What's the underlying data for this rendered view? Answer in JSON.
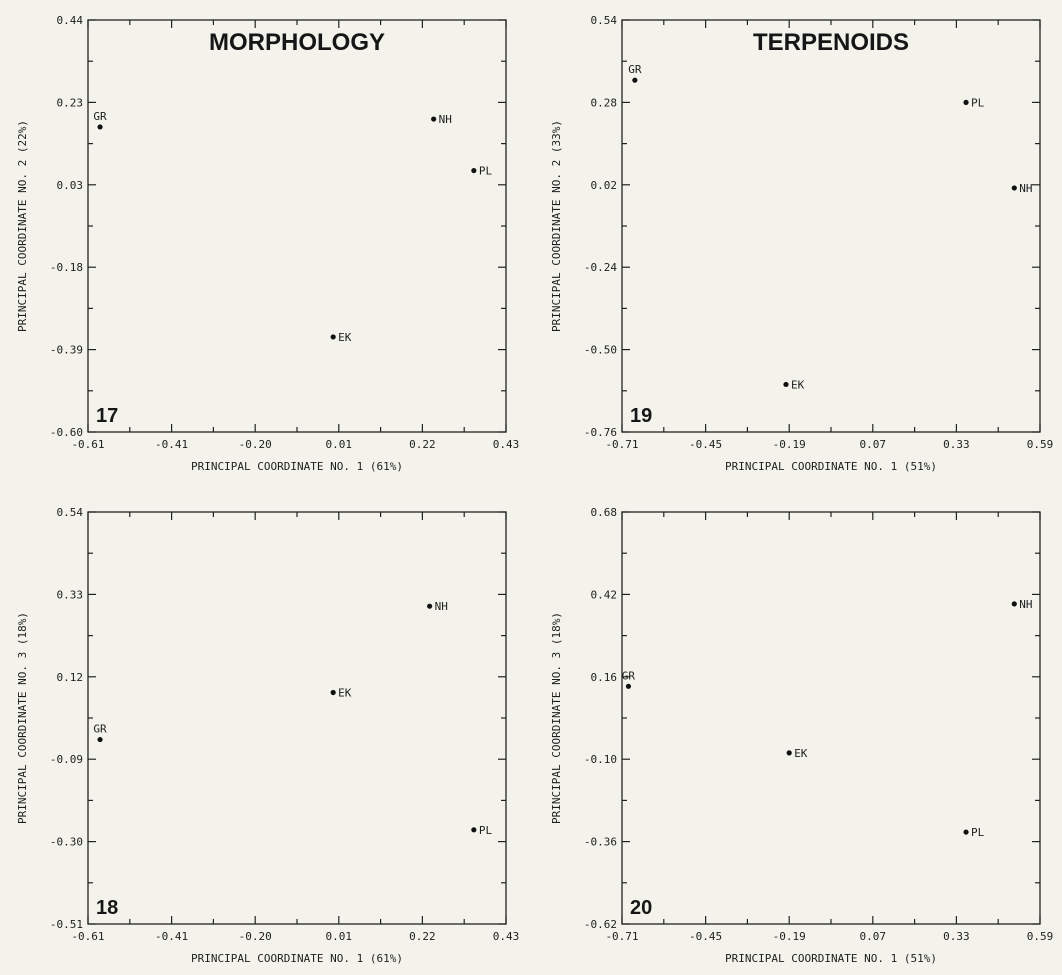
{
  "chart_data": [
    {
      "type": "scatter",
      "panel": "17",
      "title": "MORPHOLOGY",
      "xlabel": "PRINCIPAL COORDINATE NO. 1 (61%)",
      "ylabel": "PRINCIPAL COORDINATE NO. 2 (22%)",
      "xlim": [
        -0.61,
        0.43
      ],
      "ylim": [
        -0.6,
        0.44
      ],
      "xticks": [
        "-0.61",
        "-0.41",
        "-0.20",
        "0.01",
        "0.22",
        "0.43"
      ],
      "yticks": [
        "-0.60",
        "-0.39",
        "-0.18",
        "0.03",
        "0.23",
        "0.44"
      ],
      "points": [
        {
          "label": "GR",
          "x": -0.58,
          "y": 0.17
        },
        {
          "label": "NH",
          "x": 0.25,
          "y": 0.19
        },
        {
          "label": "PL",
          "x": 0.35,
          "y": 0.06
        },
        {
          "label": "EK",
          "x": 0.0,
          "y": -0.36
        }
      ]
    },
    {
      "type": "scatter",
      "panel": "19",
      "title": "TERPENOIDS",
      "xlabel": "PRINCIPAL COORDINATE NO. 1 (51%)",
      "ylabel": "PRINCIPAL COORDINATE NO. 2 (33%)",
      "xlim": [
        -0.71,
        0.59
      ],
      "ylim": [
        -0.76,
        0.54
      ],
      "xticks": [
        "-0.71",
        "-0.45",
        "-0.19",
        "0.07",
        "0.33",
        "0.59"
      ],
      "yticks": [
        "-0.76",
        "-0.50",
        "-0.24",
        "0.02",
        "0.28",
        "0.54"
      ],
      "points": [
        {
          "label": "GR",
          "x": -0.67,
          "y": 0.35
        },
        {
          "label": "PL",
          "x": 0.36,
          "y": 0.28
        },
        {
          "label": "NH",
          "x": 0.51,
          "y": 0.01
        },
        {
          "label": "EK",
          "x": -0.2,
          "y": -0.61
        }
      ]
    },
    {
      "type": "scatter",
      "panel": "18",
      "title": "",
      "xlabel": "PRINCIPAL COORDINATE NO. 1 (61%)",
      "ylabel": "PRINCIPAL COORDINATE NO. 3 (18%)",
      "xlim": [
        -0.61,
        0.43
      ],
      "ylim": [
        -0.51,
        0.54
      ],
      "xticks": [
        "-0.61",
        "-0.41",
        "-0.20",
        "0.01",
        "0.22",
        "0.43"
      ],
      "yticks": [
        "-0.51",
        "-0.30",
        "-0.09",
        "0.12",
        "0.33",
        "0.54"
      ],
      "points": [
        {
          "label": "GR",
          "x": -0.58,
          "y": -0.04
        },
        {
          "label": "NH",
          "x": 0.24,
          "y": 0.3
        },
        {
          "label": "EK",
          "x": 0.0,
          "y": 0.08
        },
        {
          "label": "PL",
          "x": 0.35,
          "y": -0.27
        }
      ]
    },
    {
      "type": "scatter",
      "panel": "20",
      "title": "",
      "xlabel": "PRINCIPAL COORDINATE NO. 1 (51%)",
      "ylabel": "PRINCIPAL COORDINATE NO. 3 (18%)",
      "xlim": [
        -0.71,
        0.59
      ],
      "ylim": [
        -0.62,
        0.68
      ],
      "xticks": [
        "-0.71",
        "-0.45",
        "-0.19",
        "0.07",
        "0.33",
        "0.59"
      ],
      "yticks": [
        "-0.62",
        "-0.36",
        "-0.10",
        "0.16",
        "0.42",
        "0.68"
      ],
      "points": [
        {
          "label": "GR",
          "x": -0.69,
          "y": 0.13
        },
        {
          "label": "NH",
          "x": 0.51,
          "y": 0.39
        },
        {
          "label": "EK",
          "x": -0.19,
          "y": -0.08
        },
        {
          "label": "PL",
          "x": 0.36,
          "y": -0.33
        }
      ]
    }
  ]
}
